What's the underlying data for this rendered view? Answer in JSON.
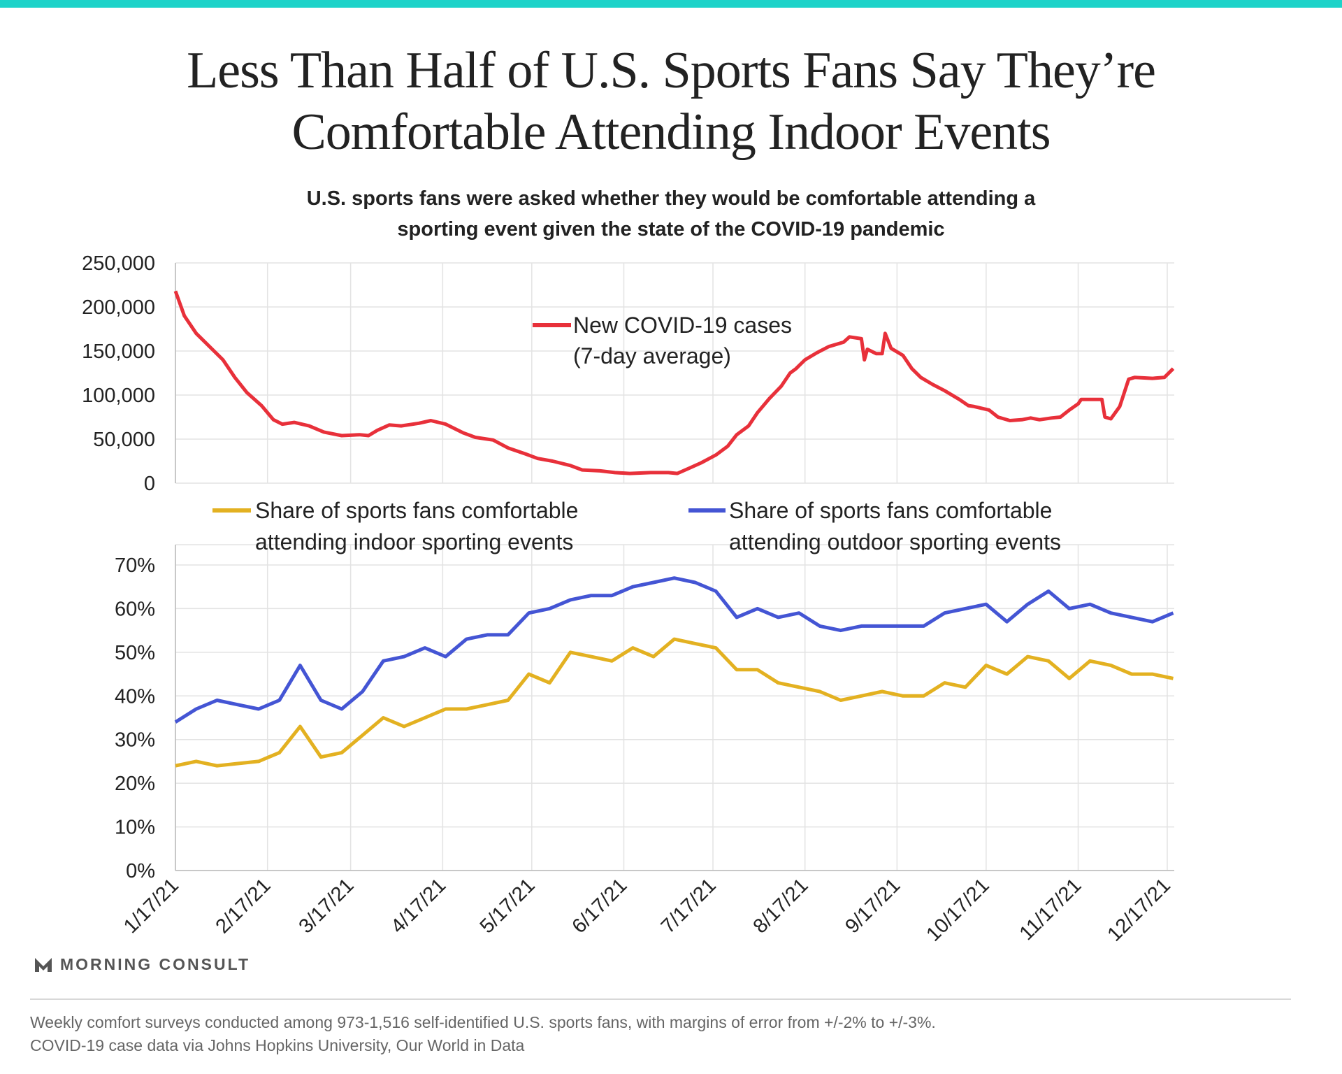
{
  "header": {
    "title_line1": "Less Than Half of U.S. Sports Fans Say They’re",
    "title_line2": "Comfortable Attending Indoor Events",
    "subtitle_line1": "U.S. sports fans were asked whether they would be comfortable attending a",
    "subtitle_line2": "sporting event given the state of the COVID-19 pandemic"
  },
  "colors": {
    "accent_bar": "#1dd3c9",
    "covid": "#e8303a",
    "indoor": "#e3b121",
    "outdoor": "#4455d4"
  },
  "chart_data": [
    {
      "type": "line",
      "title": "New COVID-19 cases (7-day average)",
      "legend": {
        "line1": "New COVID-19 cases",
        "line2": "(7-day average)",
        "placement": "top-center"
      },
      "ylim": [
        0,
        250000
      ],
      "yticks": [
        "0",
        "50,000",
        "100,000",
        "150,000",
        "200,000",
        "250,000"
      ],
      "start_date": "2021-01-17",
      "x_unit": "days since start_date",
      "series": [
        {
          "name": "New COVID-19 cases (7-day average)",
          "points": [
            [
              0,
              218000
            ],
            [
              3,
              190000
            ],
            [
              7,
              170000
            ],
            [
              13,
              150000
            ],
            [
              16,
              140000
            ],
            [
              20,
              120000
            ],
            [
              24,
              103000
            ],
            [
              29,
              88000
            ],
            [
              33,
              72000
            ],
            [
              36,
              67000
            ],
            [
              40,
              69000
            ],
            [
              45,
              65000
            ],
            [
              50,
              58000
            ],
            [
              56,
              54000
            ],
            [
              62,
              55000
            ],
            [
              65,
              54000
            ],
            [
              68,
              60000
            ],
            [
              72,
              66000
            ],
            [
              76,
              65000
            ],
            [
              82,
              68000
            ],
            [
              86,
              71000
            ],
            [
              91,
              67000
            ],
            [
              97,
              57000
            ],
            [
              101,
              52000
            ],
            [
              107,
              49000
            ],
            [
              112,
              40000
            ],
            [
              118,
              33000
            ],
            [
              122,
              28000
            ],
            [
              127,
              25000
            ],
            [
              133,
              20000
            ],
            [
              137,
              15000
            ],
            [
              143,
              14000
            ],
            [
              148,
              12000
            ],
            [
              153,
              11000
            ],
            [
              160,
              12000
            ],
            [
              166,
              12000
            ],
            [
              169,
              11000
            ],
            [
              173,
              17000
            ],
            [
              177,
              23000
            ],
            [
              182,
              32000
            ],
            [
              186,
              42000
            ],
            [
              189,
              55000
            ],
            [
              193,
              65000
            ],
            [
              196,
              80000
            ],
            [
              200,
              96000
            ],
            [
              204,
              110000
            ],
            [
              207,
              125000
            ],
            [
              209,
              130000
            ],
            [
              212,
              140000
            ],
            [
              216,
              148000
            ],
            [
              220,
              155000
            ],
            [
              225,
              160000
            ],
            [
              227,
              166000
            ],
            [
              231,
              164000
            ],
            [
              232,
              140000
            ],
            [
              233,
              152000
            ],
            [
              236,
              147000
            ],
            [
              238,
              147000
            ],
            [
              239,
              170000
            ],
            [
              241,
              153000
            ],
            [
              245,
              145000
            ],
            [
              248,
              130000
            ],
            [
              251,
              120000
            ],
            [
              255,
              112000
            ],
            [
              259,
              105000
            ],
            [
              264,
              95000
            ],
            [
              267,
              88000
            ],
            [
              269,
              87000
            ],
            [
              274,
              83000
            ],
            [
              277,
              75000
            ],
            [
              281,
              71000
            ],
            [
              285,
              72000
            ],
            [
              288,
              74000
            ],
            [
              291,
              72000
            ],
            [
              295,
              74000
            ],
            [
              298,
              75000
            ],
            [
              301,
              83000
            ],
            [
              304,
              90000
            ],
            [
              305,
              95000
            ],
            [
              310,
              95000
            ],
            [
              312,
              95000
            ],
            [
              313,
              75000
            ],
            [
              315,
              73000
            ],
            [
              318,
              87000
            ],
            [
              321,
              118000
            ],
            [
              323,
              120000
            ],
            [
              329,
              119000
            ],
            [
              333,
              120000
            ],
            [
              336,
              130000
            ]
          ]
        }
      ]
    },
    {
      "type": "line",
      "ylim": [
        0,
        70
      ],
      "yticks": [
        "0%",
        "10%",
        "20%",
        "30%",
        "40%",
        "50%",
        "60%",
        "70%"
      ],
      "xticks": [
        "1/17/21",
        "2/17/21",
        "3/17/21",
        "4/17/21",
        "5/17/21",
        "6/17/21",
        "7/17/21",
        "8/17/21",
        "9/17/21",
        "10/17/21",
        "11/17/21",
        "12/17/21"
      ],
      "xtick_days": [
        0,
        31,
        59,
        90,
        120,
        151,
        181,
        212,
        243,
        273,
        304,
        334
      ],
      "start_date": "2021-01-17",
      "x_step_days": 7,
      "series": [
        {
          "name": "indoor",
          "legend_line1": "Share of sports fans comfortable",
          "legend_line2": "attending indoor sporting events",
          "values": [
            24,
            25,
            24,
            24.5,
            25,
            27,
            33,
            26,
            27,
            31,
            35,
            33,
            35,
            37,
            37,
            38,
            39,
            45,
            43,
            50,
            49,
            48,
            51,
            49,
            53,
            52,
            51,
            46,
            46,
            43,
            42,
            41,
            39,
            40,
            41,
            40,
            40,
            43,
            42,
            47,
            45,
            49,
            48,
            44,
            48,
            47,
            45,
            45,
            44
          ]
        },
        {
          "name": "outdoor",
          "legend_line1": "Share of sports fans comfortable",
          "legend_line2": "attending outdoor sporting events",
          "values": [
            34,
            37,
            39,
            38,
            37,
            39,
            47,
            39,
            37,
            41,
            48,
            49,
            51,
            49,
            53,
            54,
            54,
            59,
            60,
            62,
            63,
            63,
            65,
            66,
            67,
            66,
            64,
            58,
            60,
            58,
            59,
            56,
            55,
            56,
            56,
            56,
            56,
            59,
            60,
            61,
            57,
            61,
            64,
            60,
            61,
            59,
            58,
            57,
            59
          ]
        }
      ]
    }
  ],
  "branding": {
    "logo_text": "MORNING CONSULT"
  },
  "footer": {
    "line1": "Weekly comfort surveys conducted among 973-1,516 self-identified U.S. sports fans, with margins of error from +/-2% to +/-3%.",
    "line2": "COVID-19 case data via Johns Hopkins University, Our World in Data"
  }
}
